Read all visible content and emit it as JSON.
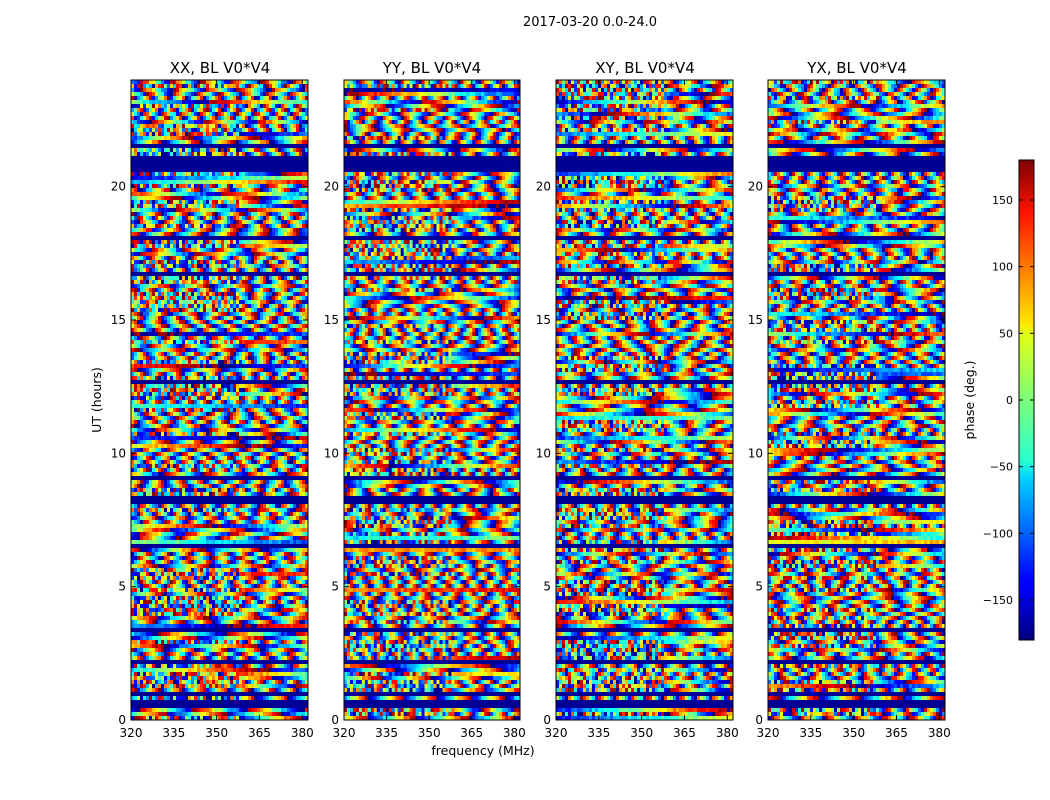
{
  "chart_data": {
    "type": "heatmap",
    "suptitle": "2017-03-20 0.0-24.0",
    "xlabel": "frequency (MHz)",
    "ylabel": "UT (hours)",
    "xlim": [
      320,
      382
    ],
    "ylim": [
      0,
      24
    ],
    "xticks": [
      320,
      335,
      350,
      365,
      380
    ],
    "yticks": [
      0,
      5,
      10,
      15,
      20
    ],
    "panels": [
      {
        "title": "XX, BL V0*V4",
        "pol": "XX",
        "seed": 11
      },
      {
        "title": "YY, BL V0*V4",
        "pol": "YY",
        "seed": 23
      },
      {
        "title": "XY, BL V0*V4",
        "pol": "XY",
        "seed": 37
      },
      {
        "title": "YX, BL V0*V4",
        "pol": "YX",
        "seed": 53
      }
    ],
    "flagged_bands_hours": [
      [
        0.45,
        0.7
      ],
      [
        0.85,
        1.0
      ],
      [
        2.1,
        2.3
      ],
      [
        3.3,
        3.5
      ],
      [
        4.3,
        4.4
      ],
      [
        6.4,
        6.55
      ],
      [
        8.15,
        8.35
      ],
      [
        9.05,
        9.2
      ],
      [
        12.6,
        12.75
      ],
      [
        14.05,
        14.15
      ],
      [
        16.6,
        16.75
      ],
      [
        18.0,
        18.15
      ],
      [
        20.5,
        21.1
      ],
      [
        21.45,
        21.55
      ],
      [
        22.6,
        22.7
      ]
    ],
    "colorbar": {
      "label": "phase (deg.)",
      "cmap": "jet",
      "range": [
        -180,
        180
      ],
      "ticks": [
        150,
        100,
        50,
        0,
        -50,
        -100,
        -150
      ],
      "tick_labels": [
        "150",
        "100",
        "50",
        "0",
        "−50",
        "−100",
        "−150"
      ]
    }
  }
}
